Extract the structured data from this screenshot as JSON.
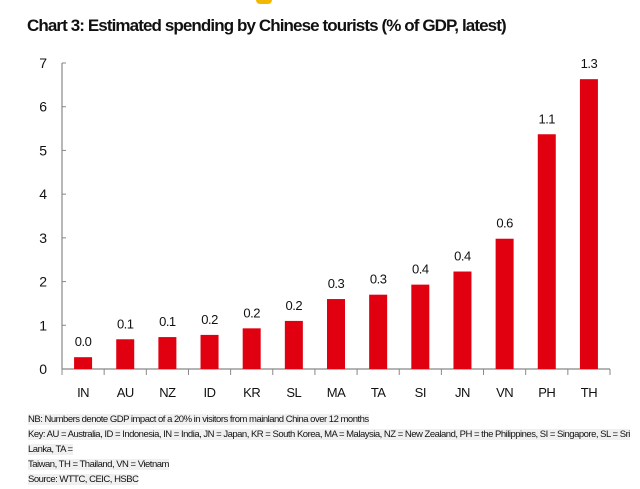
{
  "chart_data": {
    "type": "bar",
    "title": "Chart 3: Estimated spending by Chinese tourists (% of GDP, latest)",
    "categories": [
      "IN",
      "AU",
      "NZ",
      "ID",
      "KR",
      "SL",
      "MA",
      "TA",
      "SI",
      "JN",
      "VN",
      "PH",
      "TH"
    ],
    "values": [
      0.27,
      0.68,
      0.73,
      0.78,
      0.93,
      1.1,
      1.6,
      1.7,
      1.93,
      2.23,
      2.98,
      5.37,
      6.63
    ],
    "data_labels": [
      "0.0",
      "0.1",
      "0.1",
      "0.2",
      "0.2",
      "0.2",
      "0.3",
      "0.3",
      "0.4",
      "0.4",
      "0.6",
      "1.1",
      "1.3"
    ],
    "ylim": [
      0,
      7
    ],
    "yticks": [
      0,
      1,
      2,
      3,
      4,
      5,
      6,
      7
    ],
    "xlabel": "",
    "ylabel": "",
    "grid": false,
    "bar_color": "#e0000f"
  },
  "footnotes": {
    "nb": "NB: Numbers denote GDP impact of a 20% in visitors from mainland China over 12 months",
    "key_line1": "Key: AU = Australia, ID = Indonesia, IN = India, JN = Japan, KR = South Korea, MA = Malaysia, NZ = New Zealand, PH = the Philippines, SI = Singapore, SL = Sri Lanka, TA =",
    "key_line2": "Taiwan, TH = Thailand, VN = Vietnam",
    "source": "Source: WTTC, CEIC, HSBC"
  }
}
